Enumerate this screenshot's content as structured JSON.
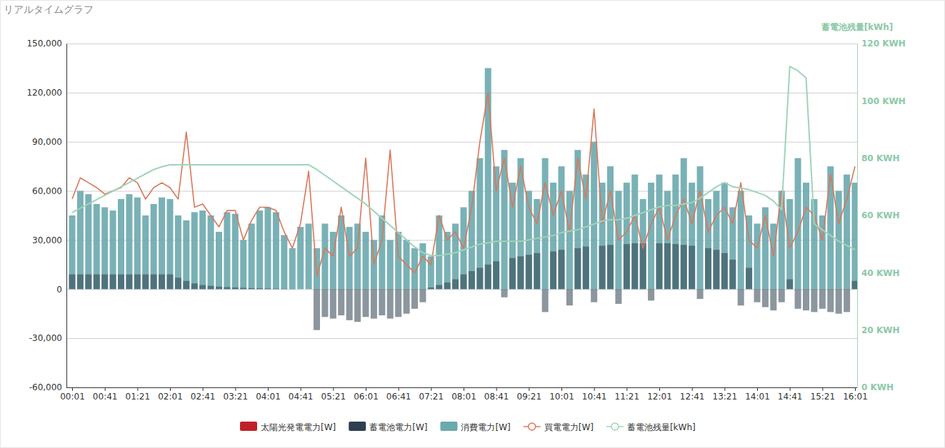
{
  "chart_data": {
    "type": "bar",
    "title": "リアルタイムグラフ",
    "y2label": "蓄電池残量[kWh]",
    "categories": [
      "00:01",
      null,
      null,
      null,
      "00:41",
      null,
      null,
      null,
      "01:21",
      null,
      null,
      null,
      "02:01",
      null,
      null,
      null,
      "02:41",
      null,
      null,
      null,
      "03:21",
      null,
      null,
      null,
      "04:01",
      null,
      null,
      null,
      "04:41",
      null,
      null,
      null,
      "05:21",
      null,
      null,
      null,
      "06:01",
      null,
      null,
      null,
      "06:41",
      null,
      null,
      null,
      "07:21",
      null,
      null,
      null,
      "08:01",
      null,
      null,
      null,
      "08:41",
      null,
      null,
      null,
      "09:21",
      null,
      null,
      null,
      "10:01",
      null,
      null,
      null,
      "10:41",
      null,
      null,
      null,
      "11:21",
      null,
      null,
      null,
      "12:01",
      null,
      null,
      null,
      "12:41",
      null,
      null,
      null,
      "13:21",
      null,
      null,
      null,
      "14:01",
      null,
      null,
      null,
      "14:41",
      null,
      null,
      null,
      "15:21",
      null,
      null,
      null,
      "16:01"
    ],
    "ylim": [
      -60000,
      150000
    ],
    "yticks": [
      {
        "value": -60000,
        "label": "-60,000"
      },
      {
        "value": -30000,
        "label": "-30,000"
      },
      0,
      {
        "value": 30000,
        "label": "30,000"
      },
      {
        "value": 60000,
        "label": "60,000"
      },
      {
        "value": 90000,
        "label": "90,000"
      },
      {
        "value": 120000,
        "label": "120,000"
      },
      {
        "value": 150000,
        "label": "150,000"
      }
    ],
    "y2lim": [
      0,
      120
    ],
    "y2ticks": [
      {
        "value": 0,
        "label": "0 KWH"
      },
      {
        "value": 20,
        "label": "20 KWH"
      },
      {
        "value": 40,
        "label": "40 KWH"
      },
      {
        "value": 60,
        "label": "60 KWH"
      },
      {
        "value": 80,
        "label": "80 KWH"
      },
      {
        "value": 100,
        "label": "100 KWH"
      },
      {
        "value": 120,
        "label": "120 KWH"
      }
    ],
    "grid": true,
    "legend": "bottom",
    "series": [
      {
        "name": "太陽光発電電力[W]",
        "color": "#c0202a",
        "type": "bar",
        "values": [
          0,
          0,
          0,
          0,
          0,
          0,
          0,
          0,
          0,
          0,
          0,
          0,
          0,
          0,
          0,
          0,
          0,
          0,
          0,
          0,
          0,
          0,
          0,
          0,
          0,
          0,
          0,
          0,
          0,
          0,
          0,
          0,
          0,
          0,
          0,
          0,
          0,
          0,
          0,
          0,
          0,
          0,
          0,
          0,
          0,
          0,
          0,
          0,
          0,
          0,
          0,
          0,
          0,
          0,
          0,
          0,
          0,
          0,
          0,
          0,
          0,
          0,
          0,
          0,
          0,
          0,
          0,
          0,
          0,
          0,
          0,
          0,
          0,
          0,
          0,
          0,
          0,
          0,
          0,
          0,
          0,
          0,
          0,
          0,
          0,
          0,
          0,
          0,
          0,
          0,
          0,
          0,
          0,
          0,
          0,
          0,
          0
        ]
      },
      {
        "name": "蓄電池電力[W]",
        "color": "#2e3f4f",
        "type": "bar",
        "values": [
          9000,
          9000,
          9000,
          9000,
          9000,
          9000,
          9000,
          9000,
          9000,
          9000,
          9000,
          9000,
          9000,
          7000,
          5000,
          3500,
          2500,
          2000,
          1500,
          1200,
          1000,
          800,
          600,
          500,
          400,
          300,
          200,
          100,
          0,
          0,
          -25000,
          -17000,
          -18000,
          -16000,
          -19000,
          -20000,
          -17000,
          -18000,
          -16000,
          -18000,
          -17000,
          -15000,
          -12000,
          -8000,
          1000,
          2500,
          4000,
          6000,
          9000,
          11000,
          13000,
          15000,
          17000,
          -5000,
          19000,
          20000,
          21000,
          22000,
          -14000,
          23000,
          24000,
          -10000,
          25000,
          26000,
          -8000,
          26500,
          27000,
          -9000,
          27500,
          28000,
          28000,
          -7000,
          28000,
          28000,
          27500,
          27000,
          26500,
          -6000,
          25000,
          24000,
          22000,
          18000,
          -10000,
          13000,
          -8000,
          -11000,
          -13000,
          -8000,
          6000,
          -12000,
          -13000,
          -14000,
          -12000,
          -14000,
          -15000,
          -14000,
          5000
        ]
      },
      {
        "name": "消費電力[W]",
        "color": "#6aa9ae",
        "type": "bar",
        "values": [
          45000,
          60000,
          58000,
          52000,
          50000,
          48000,
          55000,
          58000,
          56000,
          45000,
          52000,
          56000,
          55000,
          45000,
          42000,
          47000,
          48000,
          45000,
          35000,
          47000,
          46000,
          30000,
          40000,
          48000,
          50000,
          47000,
          33000,
          25000,
          38000,
          40000,
          25000,
          40000,
          35000,
          45000,
          38000,
          40000,
          35000,
          30000,
          45000,
          30000,
          35000,
          30000,
          25000,
          28000,
          20000,
          45000,
          35000,
          40000,
          50000,
          60000,
          80000,
          135000,
          75000,
          85000,
          65000,
          80000,
          60000,
          55000,
          80000,
          65000,
          75000,
          60000,
          85000,
          70000,
          90000,
          65000,
          75000,
          60000,
          65000,
          70000,
          55000,
          65000,
          70000,
          60000,
          70000,
          80000,
          65000,
          75000,
          55000,
          60000,
          65000,
          50000,
          60000,
          45000,
          40000,
          50000,
          40000,
          60000,
          55000,
          80000,
          65000,
          55000,
          45000,
          75000,
          60000,
          70000,
          65000
        ]
      },
      {
        "name": "買電電力[W]",
        "color": "#d9785b",
        "type": "line",
        "marker": "circle",
        "values": [
          55000,
          68000,
          65000,
          62000,
          58000,
          60000,
          62000,
          68000,
          65000,
          55000,
          62000,
          65000,
          62000,
          55000,
          96000,
          50000,
          52000,
          45000,
          38000,
          48000,
          48000,
          30000,
          42000,
          50000,
          50000,
          48000,
          35000,
          25000,
          40000,
          72000,
          8000,
          25000,
          20000,
          50000,
          20000,
          25000,
          80000,
          15000,
          30000,
          85000,
          20000,
          15000,
          10000,
          20000,
          15000,
          45000,
          30000,
          35000,
          25000,
          50000,
          90000,
          120000,
          60000,
          80000,
          50000,
          75000,
          50000,
          40000,
          65000,
          45000,
          60000,
          35000,
          80000,
          55000,
          110000,
          40000,
          60000,
          30000,
          35000,
          45000,
          25000,
          40000,
          50000,
          30000,
          45000,
          55000,
          40000,
          60000,
          35000,
          45000,
          50000,
          40000,
          65000,
          30000,
          25000,
          45000,
          20000,
          60000,
          25000,
          35000,
          50000,
          45000,
          30000,
          70000,
          40000,
          55000,
          75000
        ]
      },
      {
        "name": "蓄電池残量[kWh]",
        "color": "#9fd4b8",
        "type": "line",
        "marker": "circle",
        "axis": "y2",
        "values": [
          61,
          62.5,
          64,
          65.5,
          67,
          68.5,
          70,
          71.5,
          73,
          74.5,
          76,
          77,
          77.7,
          77.7,
          77.7,
          77.7,
          77.7,
          77.7,
          77.7,
          77.7,
          77.7,
          77.7,
          77.7,
          77.7,
          77.7,
          77.7,
          77.7,
          77.7,
          77.7,
          77.7,
          76,
          74,
          72,
          70,
          68,
          66,
          64,
          61.5,
          59,
          56.5,
          54,
          51.5,
          49,
          47,
          46,
          46,
          46.5,
          47,
          48,
          49,
          50,
          50.5,
          51,
          51,
          51,
          51,
          51.5,
          52,
          52.5,
          53,
          54,
          54.5,
          55,
          56,
          57,
          58,
          58.5,
          58.5,
          59,
          60,
          61,
          62,
          63,
          63.5,
          63.5,
          64,
          64.5,
          66,
          68,
          70,
          71.5,
          70,
          69.5,
          69,
          68,
          67,
          65,
          62,
          112,
          110.5,
          108,
          57,
          55,
          53,
          51,
          49.5,
          48
        ]
      }
    ]
  }
}
